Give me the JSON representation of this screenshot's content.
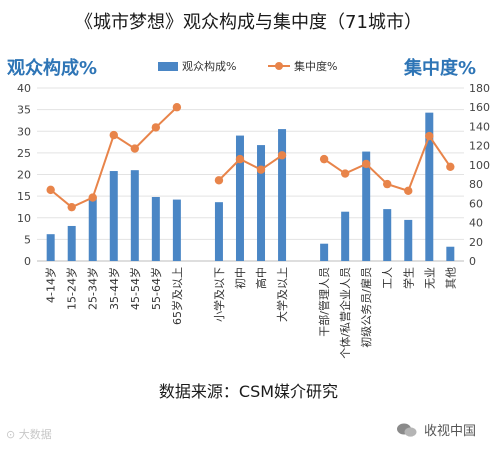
{
  "header": {
    "title": "《城市梦想》观众构成与集中度（71城市）",
    "left_axis_label": "观众构成%",
    "right_axis_label": "集中度%"
  },
  "footer": {
    "source": "数据来源：CSM媒介研究",
    "watermark_left": "大数据",
    "watermark_right": "收视中国"
  },
  "icons": {
    "wechat": "wechat-icon",
    "weibo": "weibo-icon"
  },
  "colors": {
    "bar": "#4a86c5",
    "line": "#e8844a",
    "label_blue": "#2e75b6"
  },
  "chart_data": {
    "type": "bar",
    "categories": [
      "4-14岁",
      "15-24岁",
      "25-34岁",
      "35-44岁",
      "45-54岁",
      "55-64岁",
      "65岁及以上",
      "小学及以下",
      "初中",
      "高中",
      "大学及以上",
      "干部/管理人员",
      "个体/私营企业人员",
      "初级公务员/雇员",
      "工人",
      "学生",
      "无业",
      "其他"
    ],
    "groups": [
      [
        0,
        6
      ],
      [
        7,
        10
      ],
      [
        11,
        17
      ]
    ],
    "series": [
      {
        "name": "观众构成%",
        "type": "bar",
        "axis": "left",
        "values": [
          6.2,
          8.1,
          14.5,
          20.8,
          21.0,
          14.8,
          14.2,
          13.6,
          29.0,
          26.8,
          30.5,
          4.0,
          11.4,
          25.3,
          12.0,
          9.5,
          34.3,
          3.3
        ]
      },
      {
        "name": "集中度%",
        "type": "line",
        "axis": "right",
        "values": [
          74,
          56,
          66,
          131,
          117,
          139,
          160,
          84,
          106,
          95,
          110,
          106,
          91,
          101,
          80,
          73,
          130,
          98
        ]
      }
    ],
    "y_left": {
      "min": 0,
      "max": 40,
      "ticks": [
        0,
        5,
        10,
        15,
        20,
        25,
        30,
        35,
        40
      ]
    },
    "y_right": {
      "min": 0,
      "max": 180,
      "ticks": [
        0,
        20,
        40,
        60,
        80,
        100,
        120,
        140,
        160,
        180
      ]
    },
    "grid": true,
    "legend": "top-center"
  }
}
